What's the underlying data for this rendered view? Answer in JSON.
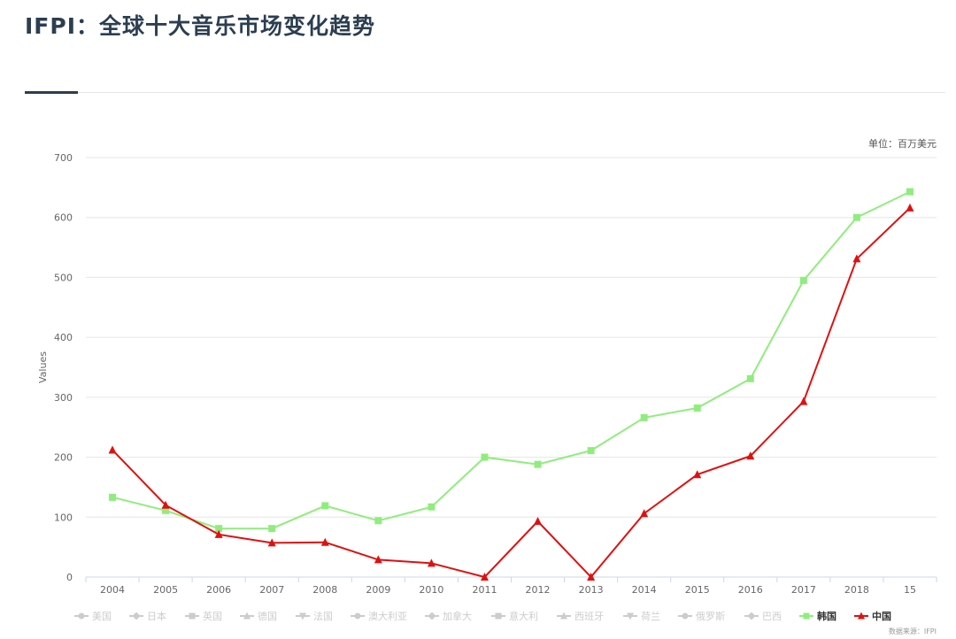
{
  "header": {
    "title": "IFPI：全球十大音乐市场变化趋势"
  },
  "chart_data": {
    "type": "line",
    "title": "IFPI：全球十大音乐市场变化趋势",
    "unit_note": "单位：百万美元",
    "source_note": "数据来源：IFPI",
    "xlabel": "",
    "ylabel": "Values",
    "ylim": [
      0,
      700
    ],
    "yticks": [
      0,
      100,
      200,
      300,
      400,
      500,
      600,
      700
    ],
    "categories": [
      "2004",
      "2005",
      "2006",
      "2007",
      "2008",
      "2009",
      "2010",
      "2011",
      "2012",
      "2013",
      "2014",
      "2015",
      "2016",
      "2017",
      "2018",
      "15"
    ],
    "grid": true,
    "legend_position": "bottom",
    "legend": [
      {
        "name": "美国",
        "marker": "circle",
        "active": false
      },
      {
        "name": "日本",
        "marker": "diamond",
        "active": false
      },
      {
        "name": "英国",
        "marker": "square",
        "active": false
      },
      {
        "name": "德国",
        "marker": "triangle",
        "active": false
      },
      {
        "name": "法国",
        "marker": "triangle-down",
        "active": false
      },
      {
        "name": "澳大利亚",
        "marker": "circle",
        "active": false
      },
      {
        "name": "加拿大",
        "marker": "diamond",
        "active": false
      },
      {
        "name": "意大利",
        "marker": "square",
        "active": false
      },
      {
        "name": "西班牙",
        "marker": "triangle",
        "active": false
      },
      {
        "name": "荷兰",
        "marker": "triangle-down",
        "active": false
      },
      {
        "name": "俄罗斯",
        "marker": "circle",
        "active": false
      },
      {
        "name": "巴西",
        "marker": "diamond",
        "active": false
      },
      {
        "name": "韩国",
        "marker": "square",
        "active": true,
        "color": "#90ed7d"
      },
      {
        "name": "中国",
        "marker": "triangle",
        "active": true,
        "color": "#e01010"
      }
    ],
    "series": [
      {
        "name": "韩国",
        "color": "#90ed7d",
        "marker": "square",
        "values": [
          133,
          111,
          81,
          81,
          119,
          94,
          117,
          200,
          188,
          211,
          266,
          282,
          331,
          495,
          600,
          643
        ]
      },
      {
        "name": "中国",
        "color": "#e01010",
        "marker": "triangle",
        "values": [
          212,
          120,
          71,
          57,
          58,
          29,
          23,
          0,
          93,
          0,
          106,
          171,
          202,
          293,
          531,
          616
        ]
      }
    ]
  }
}
